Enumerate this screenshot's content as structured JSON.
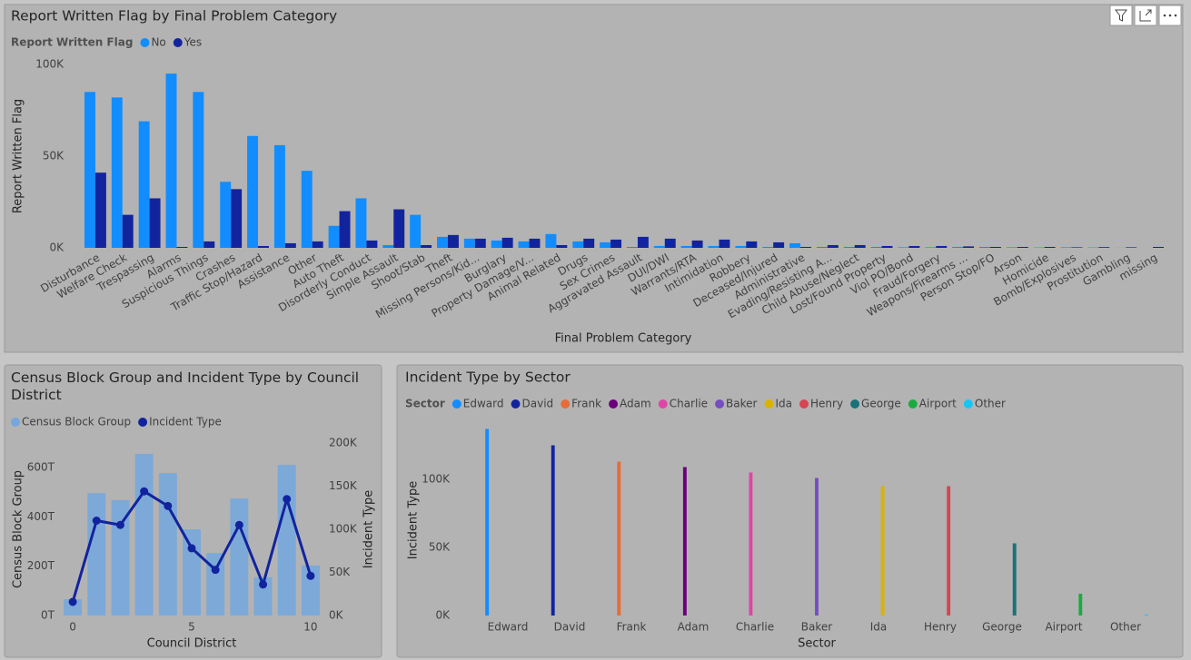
{
  "chart_data": [
    {
      "type": "bar",
      "title": "Report Written Flag by Final Problem Category",
      "legend_title": "Report Written Flag",
      "y_label": "Report Written Flag",
      "x_label": "Final Problem Category",
      "categories": [
        "Disturbance",
        "Welfare Check",
        "Trespassing",
        "Alarms",
        "Suspicious Things",
        "Crashes",
        "Traffic Stop/Hazard",
        "Assistance",
        "Other",
        "Auto Theft",
        "Disorderly Conduct",
        "Simple Assault",
        "Shoot/Stab",
        "Theft",
        "Missing Persons/Kid...",
        "Burglary",
        "Property Damage/V...",
        "Animal Related",
        "Drugs",
        "Sex Crimes",
        "Aggravated Assault",
        "DUI/DWI",
        "Warrants/RTA",
        "Intimidation",
        "Robbery",
        "Deceased/Injured",
        "Administrative",
        "Evading/Resisting A...",
        "Child Abuse/Neglect",
        "Lost/Found Property",
        "Viol PO/Bond",
        "Fraud/Forgery",
        "Weapons/Firearms ...",
        "Person Stop/FO",
        "Arson",
        "Homicide",
        "Bomb/Explosives",
        "Prostitution",
        "Gambling",
        "missing"
      ],
      "series": [
        {
          "name": "No",
          "color": "#118dff",
          "values": [
            85000,
            82000,
            69000,
            95000,
            85000,
            36000,
            61000,
            56000,
            42000,
            12000,
            27000,
            1500,
            18000,
            6000,
            5000,
            4000,
            3500,
            7500,
            3500,
            3000,
            500,
            1000,
            1000,
            1000,
            1000,
            500,
            2500,
            500,
            500,
            500,
            300,
            300,
            500,
            500,
            300,
            200,
            300,
            200,
            50,
            0
          ]
        },
        {
          "name": "Yes",
          "color": "#12239e",
          "values": [
            41000,
            18000,
            27000,
            500,
            3500,
            32000,
            1000,
            2500,
            3500,
            20000,
            4000,
            21000,
            1500,
            7000,
            5000,
            5500,
            5000,
            1500,
            5000,
            4500,
            6000,
            5000,
            4000,
            4500,
            3500,
            3000,
            500,
            1500,
            1500,
            1000,
            1000,
            1000,
            800,
            500,
            500,
            500,
            300,
            400,
            300,
            500
          ]
        }
      ],
      "ylim": [
        0,
        100000
      ],
      "yticks": [
        {
          "value": 0,
          "label": "0K"
        },
        {
          "value": 50000,
          "label": "50K"
        },
        {
          "value": 100000,
          "label": "100K"
        }
      ],
      "grid": false
    },
    {
      "type": "combo",
      "title": "Census Block Group and Incident Type by Council District",
      "x_label": "Council District",
      "y_label": "Census Block Group",
      "y2_label": "Incident Type",
      "x": [
        0,
        1,
        2,
        3,
        4,
        5,
        6,
        7,
        8,
        9,
        10
      ],
      "xlim": [
        -0.5,
        10.5
      ],
      "xticks": [
        0,
        5,
        10
      ],
      "series": [
        {
          "name": "Census Block Group",
          "type": "bar",
          "color": "#76a7dc",
          "values": [
            66000,
            497000,
            468000,
            656000,
            578000,
            350000,
            254000,
            475000,
            155000,
            611000,
            203000
          ]
        },
        {
          "name": "Incident Type",
          "type": "line",
          "axis": "y2",
          "color": "#12239e",
          "values": [
            15800,
            110000,
            105000,
            144000,
            127000,
            78000,
            53000,
            105000,
            36000,
            135000,
            46000
          ]
        }
      ],
      "ylim": [
        0,
        700000
      ],
      "yticks": [
        {
          "value": 0,
          "label": "0T"
        },
        {
          "value": 200000,
          "label": "200T"
        },
        {
          "value": 400000,
          "label": "400T"
        },
        {
          "value": 600000,
          "label": "600T"
        }
      ],
      "y2lim": [
        0,
        200000
      ],
      "y2ticks": [
        {
          "value": 0,
          "label": "0K"
        },
        {
          "value": 50000,
          "label": "50K"
        },
        {
          "value": 100000,
          "label": "100K"
        },
        {
          "value": 150000,
          "label": "150K"
        },
        {
          "value": 200000,
          "label": "200K"
        }
      ],
      "grid": false
    },
    {
      "type": "bar",
      "title": "Incident Type by Sector",
      "legend_title": "Sector",
      "y_label": "Incident Type",
      "x_label": "Sector",
      "categories": [
        "Edward",
        "David",
        "Frank",
        "Adam",
        "Charlie",
        "Baker",
        "Ida",
        "Henry",
        "George",
        "Airport",
        "Other"
      ],
      "series": [
        {
          "name": "Edward",
          "color": "#118dff",
          "values": [
            137000,
            null,
            null,
            null,
            null,
            null,
            null,
            null,
            null,
            null,
            null
          ]
        },
        {
          "name": "David",
          "color": "#12239e",
          "values": [
            null,
            125000,
            null,
            null,
            null,
            null,
            null,
            null,
            null,
            null,
            null
          ]
        },
        {
          "name": "Frank",
          "color": "#e66c37",
          "values": [
            null,
            null,
            113000,
            null,
            null,
            null,
            null,
            null,
            null,
            null,
            null
          ]
        },
        {
          "name": "Adam",
          "color": "#6b007b",
          "values": [
            null,
            null,
            null,
            109000,
            null,
            null,
            null,
            null,
            null,
            null,
            null
          ]
        },
        {
          "name": "Charlie",
          "color": "#e044a7",
          "values": [
            null,
            null,
            null,
            null,
            105000,
            null,
            null,
            null,
            null,
            null,
            null
          ]
        },
        {
          "name": "Baker",
          "color": "#744ec2",
          "values": [
            null,
            null,
            null,
            null,
            null,
            101000,
            null,
            null,
            null,
            null,
            null
          ]
        },
        {
          "name": "Ida",
          "color": "#d9b300",
          "values": [
            null,
            null,
            null,
            null,
            null,
            null,
            95000,
            null,
            null,
            null,
            null
          ]
        },
        {
          "name": "Henry",
          "color": "#d64550",
          "values": [
            null,
            null,
            null,
            null,
            null,
            null,
            null,
            95000,
            null,
            null,
            null
          ]
        },
        {
          "name": "George",
          "color": "#197278",
          "values": [
            null,
            null,
            null,
            null,
            null,
            null,
            null,
            null,
            53000,
            null,
            null
          ]
        },
        {
          "name": "Airport",
          "color": "#1aab40",
          "values": [
            null,
            null,
            null,
            null,
            null,
            null,
            null,
            null,
            null,
            16000,
            null
          ]
        },
        {
          "name": "Other",
          "color": "#15c6f4",
          "values": [
            null,
            null,
            null,
            null,
            null,
            null,
            null,
            null,
            null,
            null,
            700
          ]
        }
      ],
      "ylim": [
        0,
        140000
      ],
      "yticks": [
        {
          "value": 0,
          "label": "0K"
        },
        {
          "value": 50000,
          "label": "50K"
        },
        {
          "value": 100000,
          "label": "100K"
        }
      ],
      "grid": false
    }
  ]
}
